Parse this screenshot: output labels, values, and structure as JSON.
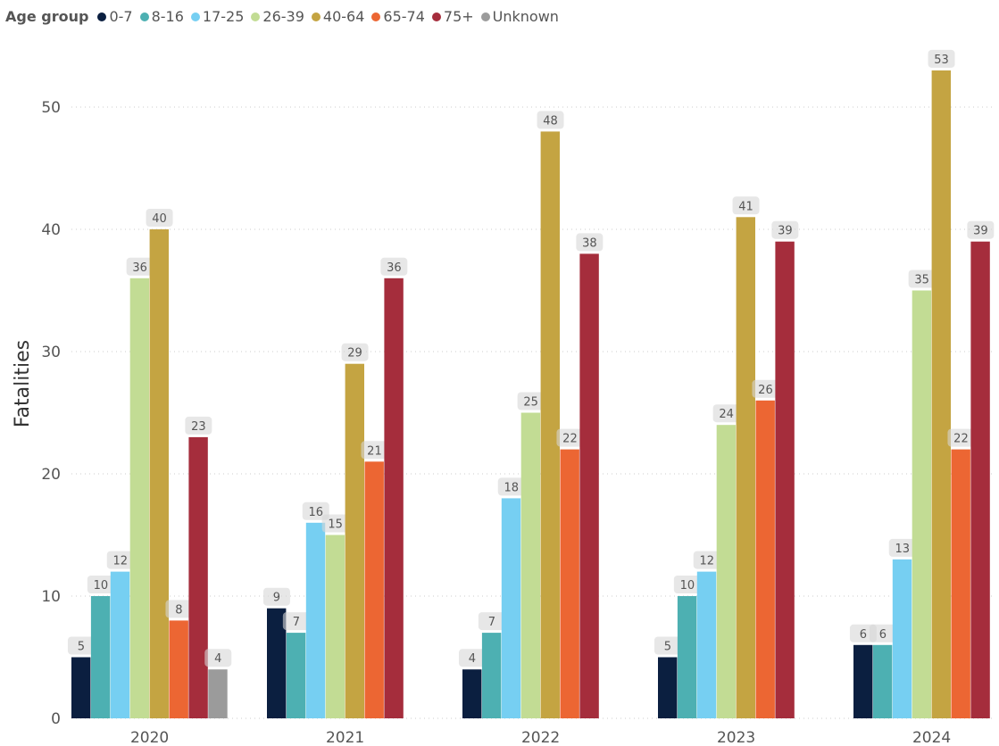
{
  "chart_data": {
    "type": "bar",
    "ylabel": "Fatalities",
    "xlabel": "",
    "ylim": [
      0,
      50
    ],
    "yticks": [
      0,
      10,
      20,
      30,
      40,
      50
    ],
    "grid": true,
    "legend": {
      "title": "Age group",
      "placement": "top-left"
    },
    "categories": [
      "2020",
      "2021",
      "2022",
      "2023",
      "2024"
    ],
    "series": [
      {
        "name": "0-7",
        "color": "#0b1f40",
        "values": [
          5,
          9,
          4,
          5,
          6
        ]
      },
      {
        "name": "8-16",
        "color": "#4db0b2",
        "values": [
          10,
          7,
          7,
          10,
          6
        ]
      },
      {
        "name": "17-25",
        "color": "#76cff2",
        "values": [
          12,
          16,
          18,
          12,
          13
        ]
      },
      {
        "name": "26-39",
        "color": "#c2dc94",
        "values": [
          36,
          15,
          25,
          24,
          35
        ]
      },
      {
        "name": "40-64",
        "color": "#c4a442",
        "values": [
          40,
          29,
          48,
          41,
          53
        ]
      },
      {
        "name": "65-74",
        "color": "#ec6633",
        "values": [
          8,
          21,
          22,
          26,
          22
        ]
      },
      {
        "name": "75+",
        "color": "#a52d3c",
        "values": [
          23,
          36,
          38,
          39,
          39
        ]
      },
      {
        "name": "Unknown",
        "color": "#9b9b9b",
        "values": [
          4,
          null,
          null,
          null,
          null
        ]
      }
    ]
  }
}
